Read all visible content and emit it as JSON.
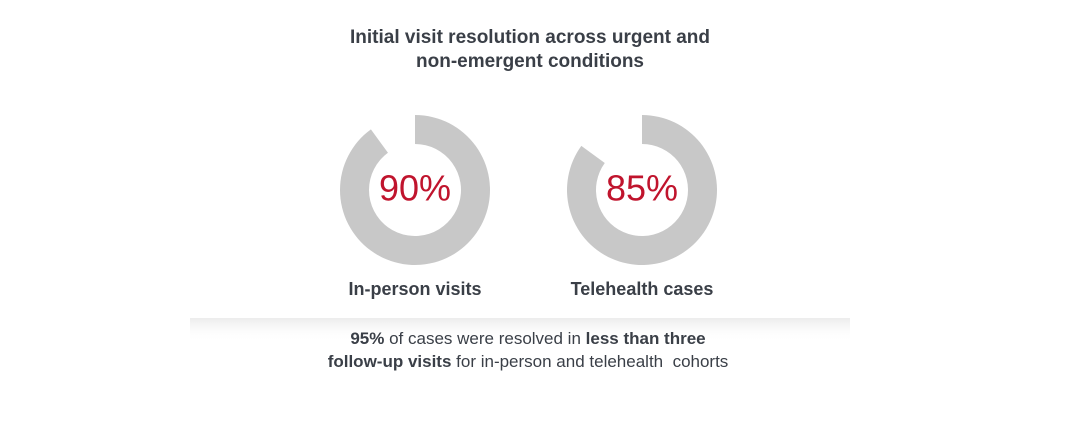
{
  "title": [
    "Initial  visit resolution across urgent and",
    "non-emergent conditions"
  ],
  "chart_data": [
    {
      "type": "donut",
      "title": "In-person visits",
      "values": [
        90
      ],
      "value_labels": [
        "90%"
      ],
      "color": "#c8c8c8",
      "label_color": "#c0142d"
    },
    {
      "type": "donut",
      "title": "Telehealth cases",
      "values": [
        85
      ],
      "value_labels": [
        "85%"
      ],
      "color": "#c8c8c8",
      "label_color": "#c0142d"
    }
  ],
  "footnote": [
    [
      {
        "text": "95%",
        "bold": true
      },
      {
        "text": " of cases were resolved in ",
        "bold": false
      },
      {
        "text": "less than three",
        "bold": true
      }
    ],
    [
      {
        "text": "follow-up visits",
        "bold": true
      },
      {
        "text": " for in-person and telehealth  cohorts",
        "bold": false
      }
    ]
  ]
}
